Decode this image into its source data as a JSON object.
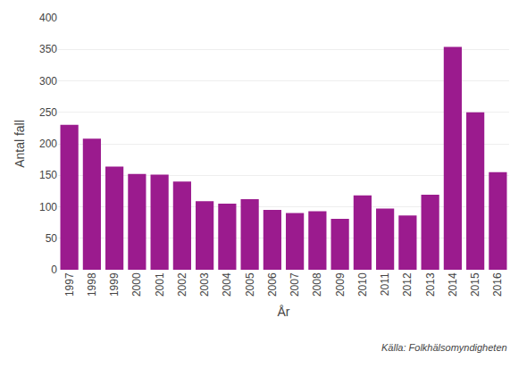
{
  "chart_data": {
    "type": "bar",
    "categories": [
      "1997",
      "1998",
      "1999",
      "2000",
      "2001",
      "2002",
      "2003",
      "2004",
      "2005",
      "2006",
      "2007",
      "2008",
      "2009",
      "2010",
      "2011",
      "2012",
      "2013",
      "2014",
      "2015",
      "2016"
    ],
    "values": [
      230,
      208,
      164,
      152,
      151,
      140,
      109,
      105,
      112,
      95,
      90,
      93,
      81,
      118,
      97,
      86,
      119,
      354,
      250,
      155
    ],
    "color": "#9B1B8E",
    "xlabel": "År",
    "ylabel": "Antal fall",
    "ylim": [
      0,
      400
    ],
    "yticks": [
      0,
      50,
      100,
      150,
      200,
      250,
      300,
      350,
      400
    ],
    "grid": true,
    "annotations": [
      "Källa: Folkhälsomyndigheten"
    ]
  }
}
